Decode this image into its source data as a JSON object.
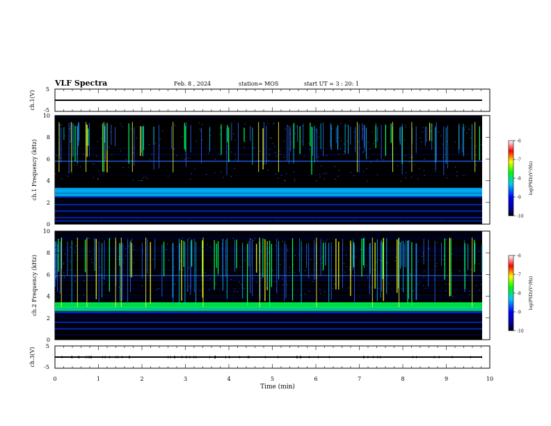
{
  "header": {
    "title": "VLF Spectra",
    "date": "Feb. 8 , 2024",
    "station": "station= MOS",
    "start": "start UT = 3 : 20: 1"
  },
  "chart_data": [
    {
      "type": "line",
      "name": "ch1-waveform",
      "ylabel": "ch.1(V)",
      "ylim": [
        -5,
        5
      ],
      "yticks": [
        "5",
        "-5"
      ],
      "x": [
        0,
        9.83
      ],
      "y": [
        0,
        0
      ]
    },
    {
      "type": "heatmap",
      "name": "ch1-spectrogram",
      "ylabel": "ch.1 Frequency (kHz)",
      "ylim": [
        0,
        10
      ],
      "yticks": [
        "0",
        "2",
        "4",
        "6",
        "8",
        "10"
      ],
      "colorbar": {
        "label": "log(PSD)(V²/Hz)",
        "range": [
          -10,
          -6
        ],
        "ticks": [
          "-6",
          "-7",
          "-8",
          "-9",
          "-10"
        ]
      },
      "bands_khz": [
        3.2,
        3.0,
        2.7,
        2.5,
        1.8,
        1.2,
        0.6,
        0.3
      ],
      "line_khz": [
        5.8
      ]
    },
    {
      "type": "heatmap",
      "name": "ch2-spectrogram",
      "ylabel": "ch.2 Frequency (kHz)",
      "ylim": [
        0,
        10
      ],
      "yticks": [
        "0",
        "2",
        "4",
        "6",
        "8",
        "10"
      ],
      "colorbar": {
        "label": "log(PSD)(V²/Hz)",
        "range": [
          -10,
          -6
        ],
        "ticks": [
          "-6",
          "-7",
          "-8",
          "-9",
          "-10"
        ]
      },
      "bands_khz": [
        3.3,
        3.0,
        2.8,
        2.5,
        1.6,
        1.0
      ],
      "line_khz": [
        5.9
      ]
    },
    {
      "type": "line",
      "name": "ch3-waveform",
      "ylabel": "ch.3(V)",
      "ylim": [
        -5,
        5
      ],
      "yticks": [
        "5",
        "-5"
      ],
      "x": [
        0,
        9.83
      ],
      "y": [
        0,
        0
      ]
    }
  ],
  "xaxis": {
    "label": "Time (min)",
    "range": [
      0,
      10
    ],
    "ticks": [
      "0",
      "1",
      "2",
      "3",
      "4",
      "5",
      "6",
      "7",
      "8",
      "9",
      "10"
    ]
  },
  "colors": {
    "background": "#000000",
    "colormap": [
      "#000000",
      "#0000ff",
      "#00c8ff",
      "#00ff00",
      "#ffff00",
      "#ff0000",
      "#ffffff"
    ]
  }
}
